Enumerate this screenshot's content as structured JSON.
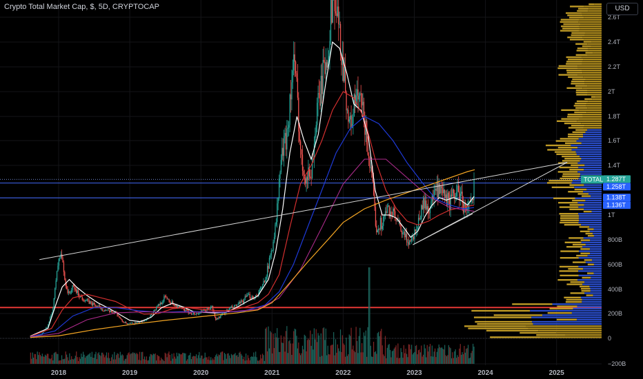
{
  "header": {
    "title": "Crypto Total Market Cap, $, 5D, CRYPTOCAP",
    "currency_button": "USD"
  },
  "chart_data": {
    "type": "candlestick",
    "symbol": "TOTAL",
    "y_ticks": [
      {
        "label": "2.6T",
        "value": 2600
      },
      {
        "label": "2.4T",
        "value": 2400
      },
      {
        "label": "2.2T",
        "value": 2200
      },
      {
        "label": "2T",
        "value": 2000
      },
      {
        "label": "1.8T",
        "value": 1800
      },
      {
        "label": "1.6T",
        "value": 1600
      },
      {
        "label": "1.4T",
        "value": 1400
      },
      {
        "label": "1T",
        "value": 1000
      },
      {
        "label": "800B",
        "value": 800
      },
      {
        "label": "600B",
        "value": 600
      },
      {
        "label": "400B",
        "value": 400
      },
      {
        "label": "200B",
        "value": 200
      },
      {
        "label": "0",
        "value": 0
      },
      {
        "label": "−200B",
        "value": -200
      }
    ],
    "x_ticks": [
      {
        "label": "2018",
        "t": 2018.0
      },
      {
        "label": "2019",
        "t": 2019.0
      },
      {
        "label": "2020",
        "t": 2020.0
      },
      {
        "label": "2021",
        "t": 2021.0
      },
      {
        "label": "2022",
        "t": 2022.0
      },
      {
        "label": "2023",
        "t": 2023.0
      },
      {
        "label": "2024",
        "t": 2024.0
      },
      {
        "label": "2025",
        "t": 2025.0
      }
    ],
    "price_labels": [
      {
        "text": "TOTAL",
        "value": 1287,
        "bg": "#26a69a",
        "side": "left"
      },
      {
        "text": "1.287T",
        "value": 1287,
        "bg": "#26a69a",
        "side": "right"
      },
      {
        "text": "1.258T",
        "value": 1258,
        "bg": "#2962ff",
        "side": "right"
      },
      {
        "text": "1.138T",
        "value": 1138,
        "bg": "#2962ff",
        "side": "right"
      },
      {
        "text": "1.136T",
        "value": 1136,
        "bg": "#2962ff",
        "side": "right"
      }
    ],
    "horizontal_lines": [
      {
        "value": 1287,
        "color": "#5b6ea8",
        "dashed": true
      },
      {
        "value": 1258,
        "color": "#3a5bd9",
        "dashed": false
      },
      {
        "value": 1138,
        "color": "#3a5bd9",
        "dashed": false
      },
      {
        "value": 250,
        "color": "#e53935",
        "dashed": false
      }
    ],
    "trend_lines": [
      {
        "t1": 2017.73,
        "v1": 640,
        "t2": 2025.15,
        "v2": 1425,
        "color": "#d8d8d8"
      },
      {
        "t1": 2022.98,
        "v1": 760,
        "t2": 2025.15,
        "v2": 1425,
        "color": "#d8d8d8"
      },
      {
        "t1": 2022.98,
        "v1": 760,
        "t2": 2023.82,
        "v2": 1010,
        "color": "#d8d8d8"
      }
    ],
    "price_path": [
      [
        2017.6,
        18
      ],
      [
        2017.75,
        30
      ],
      [
        2017.85,
        110
      ],
      [
        2017.92,
        260
      ],
      [
        2017.97,
        560
      ],
      [
        2018.03,
        700
      ],
      [
        2018.08,
        480
      ],
      [
        2018.13,
        360
      ],
      [
        2018.2,
        420
      ],
      [
        2018.3,
        340
      ],
      [
        2018.4,
        300
      ],
      [
        2018.5,
        270
      ],
      [
        2018.6,
        240
      ],
      [
        2018.7,
        215
      ],
      [
        2018.8,
        210
      ],
      [
        2018.88,
        140
      ],
      [
        2018.96,
        115
      ],
      [
        2019.1,
        125
      ],
      [
        2019.25,
        160
      ],
      [
        2019.4,
        270
      ],
      [
        2019.5,
        340
      ],
      [
        2019.58,
        290
      ],
      [
        2019.7,
        245
      ],
      [
        2019.8,
        215
      ],
      [
        2019.92,
        195
      ],
      [
        2020.05,
        225
      ],
      [
        2020.15,
        255
      ],
      [
        2020.2,
        150
      ],
      [
        2020.25,
        170
      ],
      [
        2020.4,
        240
      ],
      [
        2020.55,
        285
      ],
      [
        2020.65,
        345
      ],
      [
        2020.75,
        335
      ],
      [
        2020.85,
        410
      ],
      [
        2020.95,
        600
      ],
      [
        2021.05,
        930
      ],
      [
        2021.12,
        1450
      ],
      [
        2021.2,
        1650
      ],
      [
        2021.3,
        2250
      ],
      [
        2021.35,
        1950
      ],
      [
        2021.4,
        1450
      ],
      [
        2021.48,
        1300
      ],
      [
        2021.55,
        1360
      ],
      [
        2021.62,
        1800
      ],
      [
        2021.7,
        2100
      ],
      [
        2021.78,
        2350
      ],
      [
        2021.85,
        2800
      ],
      [
        2021.92,
        2550
      ],
      [
        2022.0,
        2200
      ],
      [
        2022.08,
        1700
      ],
      [
        2022.18,
        1950
      ],
      [
        2022.25,
        1900
      ],
      [
        2022.32,
        1650
      ],
      [
        2022.4,
        1250
      ],
      [
        2022.46,
        900
      ],
      [
        2022.55,
        950
      ],
      [
        2022.62,
        1050
      ],
      [
        2022.7,
        1000
      ],
      [
        2022.8,
        880
      ],
      [
        2022.88,
        800
      ],
      [
        2022.96,
        800
      ],
      [
        2023.05,
        950
      ],
      [
        2023.12,
        1100
      ],
      [
        2023.2,
        1050
      ],
      [
        2023.3,
        1200
      ],
      [
        2023.4,
        1150
      ],
      [
        2023.5,
        1100
      ],
      [
        2023.58,
        1200
      ],
      [
        2023.65,
        1150
      ],
      [
        2023.7,
        1050
      ],
      [
        2023.78,
        1070
      ],
      [
        2023.82,
        1100
      ],
      [
        2023.84,
        1287
      ]
    ],
    "moving_averages": [
      {
        "name": "",
        "color": "#ffffff",
        "width": 1.2,
        "points": [
          [
            2017.6,
            18
          ],
          [
            2017.85,
            80
          ],
          [
            2017.97,
            290
          ],
          [
            2018.05,
            420
          ],
          [
            2018.15,
            480
          ],
          [
            2018.25,
            420
          ],
          [
            2018.4,
            350
          ],
          [
            2018.55,
            290
          ],
          [
            2018.7,
            245
          ],
          [
            2018.85,
            195
          ],
          [
            2019.0,
            145
          ],
          [
            2019.15,
            135
          ],
          [
            2019.3,
            170
          ],
          [
            2019.45,
            250
          ],
          [
            2019.6,
            285
          ],
          [
            2019.75,
            255
          ],
          [
            2019.9,
            215
          ],
          [
            2020.05,
            210
          ],
          [
            2020.2,
            205
          ],
          [
            2020.35,
            210
          ],
          [
            2020.5,
            250
          ],
          [
            2020.65,
            300
          ],
          [
            2020.8,
            345
          ],
          [
            2020.95,
            480
          ],
          [
            2021.05,
            700
          ],
          [
            2021.15,
            1050
          ],
          [
            2021.25,
            1500
          ],
          [
            2021.35,
            1800
          ],
          [
            2021.45,
            1600
          ],
          [
            2021.55,
            1450
          ],
          [
            2021.65,
            1650
          ],
          [
            2021.75,
            2050
          ],
          [
            2021.85,
            2400
          ],
          [
            2021.95,
            2350
          ],
          [
            2022.05,
            2150
          ],
          [
            2022.15,
            1900
          ],
          [
            2022.25,
            1850
          ],
          [
            2022.35,
            1650
          ],
          [
            2022.45,
            1200
          ],
          [
            2022.55,
            1000
          ],
          [
            2022.65,
            1000
          ],
          [
            2022.75,
            975
          ],
          [
            2022.85,
            900
          ],
          [
            2022.95,
            820
          ],
          [
            2023.05,
            870
          ],
          [
            2023.15,
            990
          ],
          [
            2023.25,
            1080
          ],
          [
            2023.35,
            1140
          ],
          [
            2023.45,
            1120
          ],
          [
            2023.55,
            1140
          ],
          [
            2023.65,
            1120
          ],
          [
            2023.75,
            1080
          ],
          [
            2023.84,
            1150
          ]
        ]
      },
      {
        "name": "",
        "color": "#d32f2f",
        "width": 1.2,
        "points": [
          [
            2017.6,
            15
          ],
          [
            2017.9,
            80
          ],
          [
            2018.05,
            230
          ],
          [
            2018.2,
            330
          ],
          [
            2018.4,
            360
          ],
          [
            2018.6,
            330
          ],
          [
            2018.8,
            300
          ],
          [
            2019.0,
            240
          ],
          [
            2019.2,
            195
          ],
          [
            2019.4,
            200
          ],
          [
            2019.6,
            240
          ],
          [
            2019.8,
            250
          ],
          [
            2020.0,
            235
          ],
          [
            2020.2,
            225
          ],
          [
            2020.4,
            225
          ],
          [
            2020.6,
            250
          ],
          [
            2020.8,
            290
          ],
          [
            2020.95,
            360
          ],
          [
            2021.1,
            520
          ],
          [
            2021.25,
            900
          ],
          [
            2021.4,
            1250
          ],
          [
            2021.55,
            1400
          ],
          [
            2021.7,
            1600
          ],
          [
            2021.85,
            1850
          ],
          [
            2022.0,
            2000
          ],
          [
            2022.15,
            1950
          ],
          [
            2022.3,
            1780
          ],
          [
            2022.45,
            1450
          ],
          [
            2022.6,
            1200
          ],
          [
            2022.75,
            1050
          ],
          [
            2022.9,
            950
          ],
          [
            2023.05,
            920
          ],
          [
            2023.2,
            950
          ],
          [
            2023.35,
            1000
          ],
          [
            2023.5,
            1040
          ],
          [
            2023.65,
            1060
          ],
          [
            2023.84,
            1080
          ]
        ]
      },
      {
        "name": "",
        "color": "#1e3ad8",
        "width": 1.2,
        "points": [
          [
            2017.6,
            12
          ],
          [
            2017.95,
            60
          ],
          [
            2018.2,
            180
          ],
          [
            2018.5,
            250
          ],
          [
            2018.8,
            250
          ],
          [
            2019.1,
            225
          ],
          [
            2019.4,
            210
          ],
          [
            2019.7,
            215
          ],
          [
            2020.0,
            215
          ],
          [
            2020.3,
            210
          ],
          [
            2020.6,
            220
          ],
          [
            2020.9,
            270
          ],
          [
            2021.1,
            380
          ],
          [
            2021.3,
            600
          ],
          [
            2021.5,
            900
          ],
          [
            2021.7,
            1200
          ],
          [
            2021.9,
            1500
          ],
          [
            2022.1,
            1700
          ],
          [
            2022.3,
            1800
          ],
          [
            2022.5,
            1740
          ],
          [
            2022.7,
            1600
          ],
          [
            2022.9,
            1420
          ],
          [
            2023.1,
            1270
          ],
          [
            2023.3,
            1130
          ],
          [
            2023.5,
            1080
          ],
          [
            2023.7,
            1050
          ],
          [
            2023.84,
            1060
          ]
        ]
      },
      {
        "name": "",
        "color": "#ab2a8a",
        "width": 1.1,
        "points": [
          [
            2017.6,
            10
          ],
          [
            2018.0,
            40
          ],
          [
            2018.4,
            150
          ],
          [
            2018.8,
            205
          ],
          [
            2019.2,
            215
          ],
          [
            2019.6,
            210
          ],
          [
            2020.0,
            212
          ],
          [
            2020.4,
            215
          ],
          [
            2020.8,
            235
          ],
          [
            2021.1,
            330
          ],
          [
            2021.4,
            560
          ],
          [
            2021.7,
            900
          ],
          [
            2022.0,
            1250
          ],
          [
            2022.3,
            1450
          ],
          [
            2022.6,
            1450
          ],
          [
            2022.9,
            1300
          ],
          [
            2023.2,
            1150
          ],
          [
            2023.5,
            1060
          ],
          [
            2023.84,
            1030
          ]
        ]
      },
      {
        "name": "",
        "color": "#f5a623",
        "width": 1.2,
        "points": [
          [
            2017.6,
            8
          ],
          [
            2018.0,
            20
          ],
          [
            2018.5,
            70
          ],
          [
            2019.0,
            110
          ],
          [
            2019.5,
            145
          ],
          [
            2020.0,
            175
          ],
          [
            2020.5,
            205
          ],
          [
            2020.8,
            230
          ],
          [
            2021.0,
            290
          ],
          [
            2021.2,
            420
          ],
          [
            2021.5,
            620
          ],
          [
            2021.8,
            810
          ],
          [
            2022.0,
            940
          ],
          [
            2022.3,
            1050
          ],
          [
            2022.6,
            1120
          ],
          [
            2022.9,
            1180
          ],
          [
            2023.2,
            1240
          ],
          [
            2023.5,
            1300
          ],
          [
            2023.75,
            1350
          ],
          [
            2023.85,
            1365
          ]
        ]
      }
    ]
  }
}
